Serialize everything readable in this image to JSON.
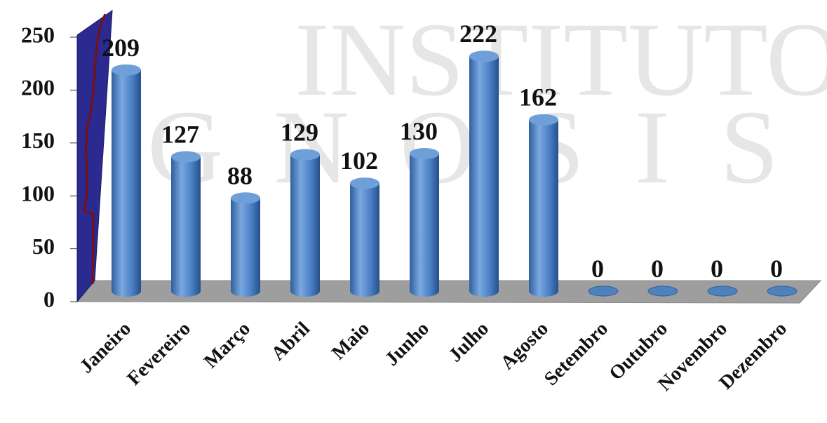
{
  "chart_data": {
    "type": "bar",
    "watermark": [
      "INSTITUTO",
      "GNOSIS"
    ],
    "categories": [
      "Janeiro",
      "Fevereiro",
      "Março",
      "Abril",
      "Maio",
      "Junho",
      "Julho",
      "Agosto",
      "Setembro",
      "Outubro",
      "Novembro",
      "Dezembro"
    ],
    "values": [
      209,
      127,
      88,
      129,
      102,
      130,
      222,
      162,
      0,
      0,
      0,
      0
    ],
    "color": "#4f81bd",
    "ylim": [
      0,
      250
    ],
    "yticks": [
      0,
      50,
      100,
      150,
      200,
      250
    ],
    "grid": false
  }
}
